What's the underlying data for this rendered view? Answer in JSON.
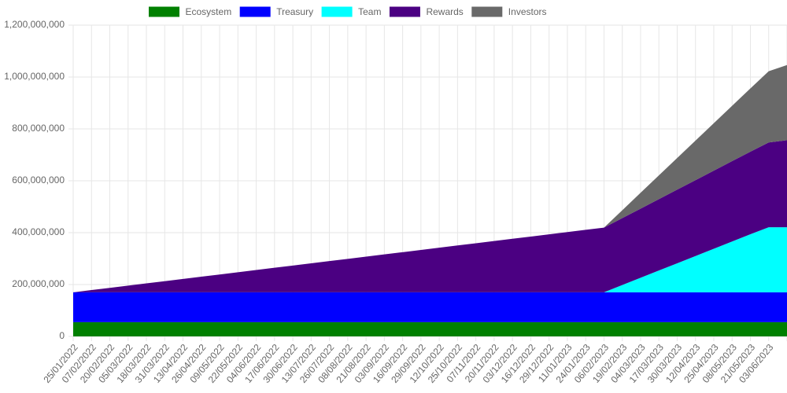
{
  "chart_data": {
    "type": "stacked-area",
    "categories": [
      "25/01/2022",
      "07/02/2022",
      "20/02/2022",
      "05/03/2022",
      "18/03/2022",
      "31/03/2022",
      "13/04/2022",
      "26/04/2022",
      "09/05/2022",
      "22/05/2022",
      "04/06/2022",
      "17/06/2022",
      "30/06/2022",
      "13/07/2022",
      "26/07/2022",
      "08/08/2022",
      "21/08/2022",
      "03/09/2022",
      "16/09/2022",
      "29/09/2022",
      "12/10/2022",
      "25/10/2022",
      "07/11/2022",
      "20/11/2022",
      "03/12/2022",
      "16/12/2022",
      "29/12/2022",
      "11/01/2023",
      "24/01/2023",
      "06/02/2023",
      "19/02/2023",
      "04/03/2023",
      "17/03/2023",
      "30/03/2023",
      "12/04/2023",
      "25/04/2023",
      "08/05/2023",
      "21/05/2023",
      "03/06/2023",
      null
    ],
    "series": [
      {
        "name": "Ecosystem",
        "color": "#008000",
        "values": [
          55000000,
          55000000,
          55000000,
          55000000,
          55000000,
          55000000,
          55000000,
          55000000,
          55000000,
          55000000,
          55000000,
          55000000,
          55000000,
          55000000,
          55000000,
          55000000,
          55000000,
          55000000,
          55000000,
          55000000,
          55000000,
          55000000,
          55000000,
          55000000,
          55000000,
          55000000,
          55000000,
          55000000,
          55000000,
          55000000,
          55000000,
          55000000,
          55000000,
          55000000,
          55000000,
          55000000,
          55000000,
          55000000,
          55000000,
          55000000
        ]
      },
      {
        "name": "Treasury",
        "color": "#0000ff",
        "values": [
          115000000,
          115000000,
          115000000,
          115000000,
          115000000,
          115000000,
          115000000,
          115000000,
          115000000,
          115000000,
          115000000,
          115000000,
          115000000,
          115000000,
          115000000,
          115000000,
          115000000,
          115000000,
          115000000,
          115000000,
          115000000,
          115000000,
          115000000,
          115000000,
          115000000,
          115000000,
          115000000,
          115000000,
          115000000,
          115000000,
          115000000,
          115000000,
          115000000,
          115000000,
          115000000,
          115000000,
          115000000,
          115000000,
          115000000,
          115000000
        ]
      },
      {
        "name": "Team",
        "color": "#00ffff",
        "values": [
          0,
          0,
          0,
          0,
          0,
          0,
          0,
          0,
          0,
          0,
          0,
          0,
          0,
          0,
          0,
          0,
          0,
          0,
          0,
          0,
          0,
          0,
          0,
          0,
          0,
          0,
          0,
          0,
          0,
          0,
          28000000,
          56000000,
          84000000,
          112000000,
          140000000,
          168000000,
          196000000,
          224000000,
          251000000,
          251000000
        ]
      },
      {
        "name": "Rewards",
        "color": "#4b0082",
        "values": [
          0,
          8600000,
          17200000,
          25800000,
          34400000,
          43000000,
          51600000,
          60200000,
          68800000,
          77400000,
          86000000,
          94600000,
          103200000,
          111800000,
          120400000,
          129000000,
          137600000,
          146200000,
          154800000,
          163400000,
          172000000,
          180600000,
          189200000,
          197800000,
          206400000,
          215000000,
          223600000,
          232200000,
          240800000,
          249400000,
          258000000,
          266600000,
          275200000,
          283800000,
          292400000,
          301000000,
          309600000,
          318200000,
          326800000,
          335400000
        ]
      },
      {
        "name": "Investors",
        "color": "#696969",
        "values": [
          0,
          0,
          0,
          0,
          0,
          0,
          0,
          0,
          0,
          0,
          0,
          0,
          0,
          0,
          0,
          0,
          0,
          0,
          0,
          0,
          0,
          0,
          0,
          0,
          0,
          0,
          0,
          0,
          0,
          0,
          30500000,
          61000000,
          91500000,
          122000000,
          152500000,
          183000000,
          213500000,
          244000000,
          274500000,
          290000000
        ]
      }
    ],
    "ylim": [
      0,
      1200000000
    ],
    "yticks": [
      {
        "value": 0,
        "label": "0"
      },
      {
        "value": 200000000,
        "label": "200,000,000"
      },
      {
        "value": 400000000,
        "label": "400,000,000"
      },
      {
        "value": 600000000,
        "label": "600,000,000"
      },
      {
        "value": 800000000,
        "label": "800,000,000"
      },
      {
        "value": 1000000000,
        "label": "1,000,000,000"
      },
      {
        "value": 1200000000,
        "label": "1,200,000,000"
      }
    ],
    "grid": true,
    "legend": "top"
  }
}
